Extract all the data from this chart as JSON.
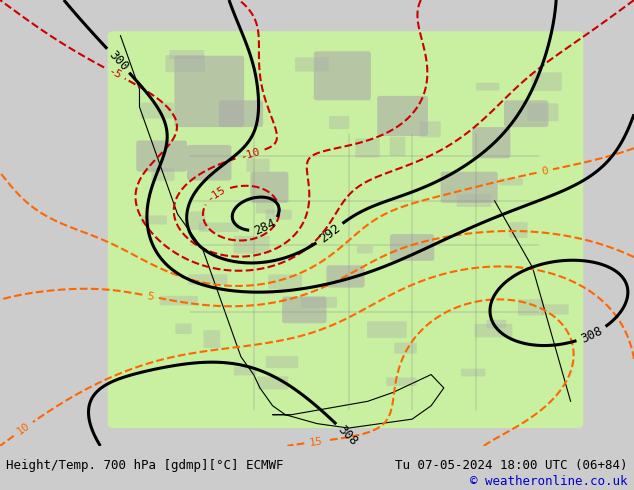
{
  "title_left": "Height/Temp. 700 hPa [gdmp][°C] ECMWF",
  "title_right": "Tu 07-05-2024 18:00 UTC (06+84)",
  "copyright": "© weatheronline.co.uk",
  "bg_color": "#cccccc",
  "green_fill_color": "#c8f0a0",
  "gray_fill_color": "#aaaaaa",
  "height_contour_color": "#000000",
  "temp_pos_color": "#ff6600",
  "temp_neg_color": "#cc0000",
  "temp_cold_color": "#cc00cc",
  "text_color_left": "#000000",
  "text_color_right": "#000000",
  "copyright_color": "#0000cc",
  "white_bar": "#ffffff",
  "figsize": [
    6.34,
    4.9
  ],
  "dpi": 100
}
